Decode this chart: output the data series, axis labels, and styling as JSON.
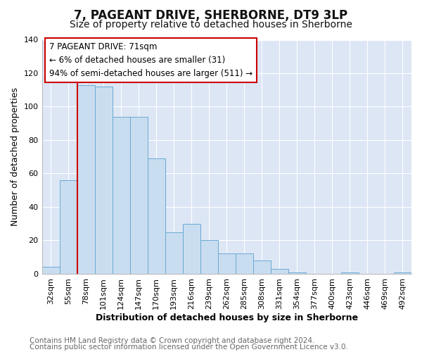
{
  "title": "7, PAGEANT DRIVE, SHERBORNE, DT9 3LP",
  "subtitle": "Size of property relative to detached houses in Sherborne",
  "xlabel": "Distribution of detached houses by size in Sherborne",
  "ylabel": "Number of detached properties",
  "bar_labels": [
    "32sqm",
    "55sqm",
    "78sqm",
    "101sqm",
    "124sqm",
    "147sqm",
    "170sqm",
    "193sqm",
    "216sqm",
    "239sqm",
    "262sqm",
    "285sqm",
    "308sqm",
    "331sqm",
    "354sqm",
    "377sqm",
    "400sqm",
    "423sqm",
    "446sqm",
    "469sqm",
    "492sqm"
  ],
  "bar_heights": [
    4,
    56,
    113,
    112,
    94,
    94,
    69,
    25,
    30,
    20,
    12,
    12,
    8,
    3,
    1,
    0,
    0,
    1,
    0,
    0,
    1
  ],
  "bar_color": "#c9ddf0",
  "bar_edge_color": "#6aaad4",
  "vline_color": "#cc0000",
  "ylim": [
    0,
    140
  ],
  "yticks": [
    0,
    20,
    40,
    60,
    80,
    100,
    120,
    140
  ],
  "annotation_text": "7 PAGEANT DRIVE: 71sqm\n← 6% of detached houses are smaller (31)\n94% of semi-detached houses are larger (511) →",
  "annotation_box_color": "#ffffff",
  "annotation_box_edge": "#cc0000",
  "footer1": "Contains HM Land Registry data © Crown copyright and database right 2024.",
  "footer2": "Contains public sector information licensed under the Open Government Licence v3.0.",
  "fig_background_color": "#ffffff",
  "plot_background": "#dce6f5",
  "title_fontsize": 12,
  "subtitle_fontsize": 10,
  "label_fontsize": 9,
  "tick_fontsize": 8,
  "footer_fontsize": 7.5,
  "annotation_fontsize": 8.5
}
